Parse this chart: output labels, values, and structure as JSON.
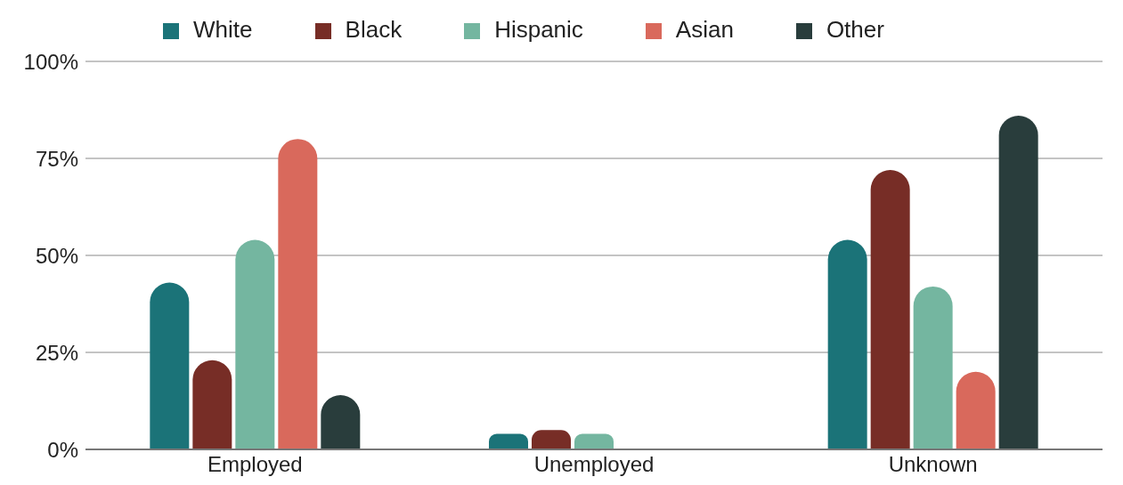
{
  "chart_data": {
    "type": "bar",
    "categories": [
      "Employed",
      "Unemployed",
      "Unknown"
    ],
    "series": [
      {
        "name": "White",
        "color": "#1b7378",
        "values": [
          43,
          4,
          54
        ]
      },
      {
        "name": "Black",
        "color": "#772d26",
        "values": [
          23,
          5,
          72
        ]
      },
      {
        "name": "Hispanic",
        "color": "#74b6a0",
        "values": [
          54,
          4,
          42
        ]
      },
      {
        "name": "Asian",
        "color": "#d9695c",
        "values": [
          80,
          0,
          20
        ]
      },
      {
        "name": "Other",
        "color": "#293d3c",
        "values": [
          14,
          0,
          86
        ]
      }
    ],
    "ylim": [
      0,
      100
    ],
    "yticks": [
      {
        "value": 0,
        "label": "0%"
      },
      {
        "value": 25,
        "label": "25%"
      },
      {
        "value": 50,
        "label": "50%"
      },
      {
        "value": 75,
        "label": "75%"
      },
      {
        "value": 100,
        "label": "100%"
      }
    ],
    "grid": "y",
    "legend": "top"
  }
}
